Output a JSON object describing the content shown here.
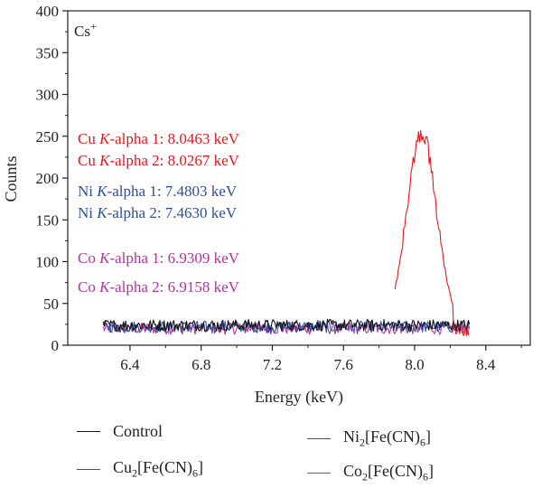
{
  "chart_data": {
    "type": "line",
    "xlabel": "Energy (keV)",
    "ylabel": "Counts",
    "xlim": [
      6.05,
      8.65
    ],
    "ylim": [
      0,
      400
    ],
    "xticks": [
      "6.4",
      "6.8",
      "7.2",
      "7.6",
      "8.0",
      "8.4"
    ],
    "yticks": [
      "0",
      "50",
      "100",
      "150",
      "200",
      "250",
      "300",
      "350",
      "400"
    ],
    "corner_label": {
      "base": "Cs",
      "sup": "+"
    },
    "annotations": [
      {
        "lines": [
          "Cu K-alpha 1: 8.0463 keV",
          "Cu K-alpha 2: 8.0267 keV"
        ],
        "color": "#e8161c"
      },
      {
        "lines": [
          "Ni K-alpha 1: 7.4803 keV",
          "Ni K-alpha 2: 7.4630 keV"
        ],
        "color": "#2d4e9c"
      },
      {
        "lines": [
          "Co K-alpha 1: 6.9309 keV",
          "Co K-alpha 2: 6.9158 keV"
        ],
        "color": "#b0359f"
      }
    ],
    "series": [
      {
        "name": "Control",
        "legend": {
          "base": "Control"
        },
        "color": "#111111",
        "x_range": [
          6.25,
          8.31
        ],
        "baseline": 24,
        "noise": 7,
        "peak": null
      },
      {
        "name": "Cu2[Fe(CN)6]",
        "legend": {
          "base": "Cu",
          "sub1": "2",
          "mid": "[Fe(CN)",
          "sub2": "6",
          "end": "]"
        },
        "color": "#e8161c",
        "x_range": [
          7.89,
          8.31
        ],
        "baseline": 22,
        "noise": 7,
        "peak": {
          "center": 8.04,
          "height": 250,
          "width": 0.075,
          "max": 279
        }
      },
      {
        "name": "Ni2[Fe(CN)6]",
        "legend": {
          "base": "Ni",
          "sub1": "2",
          "mid": "[Fe(CN)",
          "sub2": "6",
          "end": "]"
        },
        "color": "#2d4e9c",
        "x_range": [
          6.25,
          8.31
        ],
        "baseline": 22,
        "noise": 7,
        "peak": null
      },
      {
        "name": "Co2[Fe(CN)6]",
        "legend": {
          "base": "Co",
          "sub1": "2",
          "mid": "[Fe(CN)",
          "sub2": "6",
          "end": "]"
        },
        "color": "#b0359f",
        "x_range": [
          6.25,
          8.31
        ],
        "baseline": 20,
        "noise": 7,
        "peak": null
      }
    ]
  }
}
